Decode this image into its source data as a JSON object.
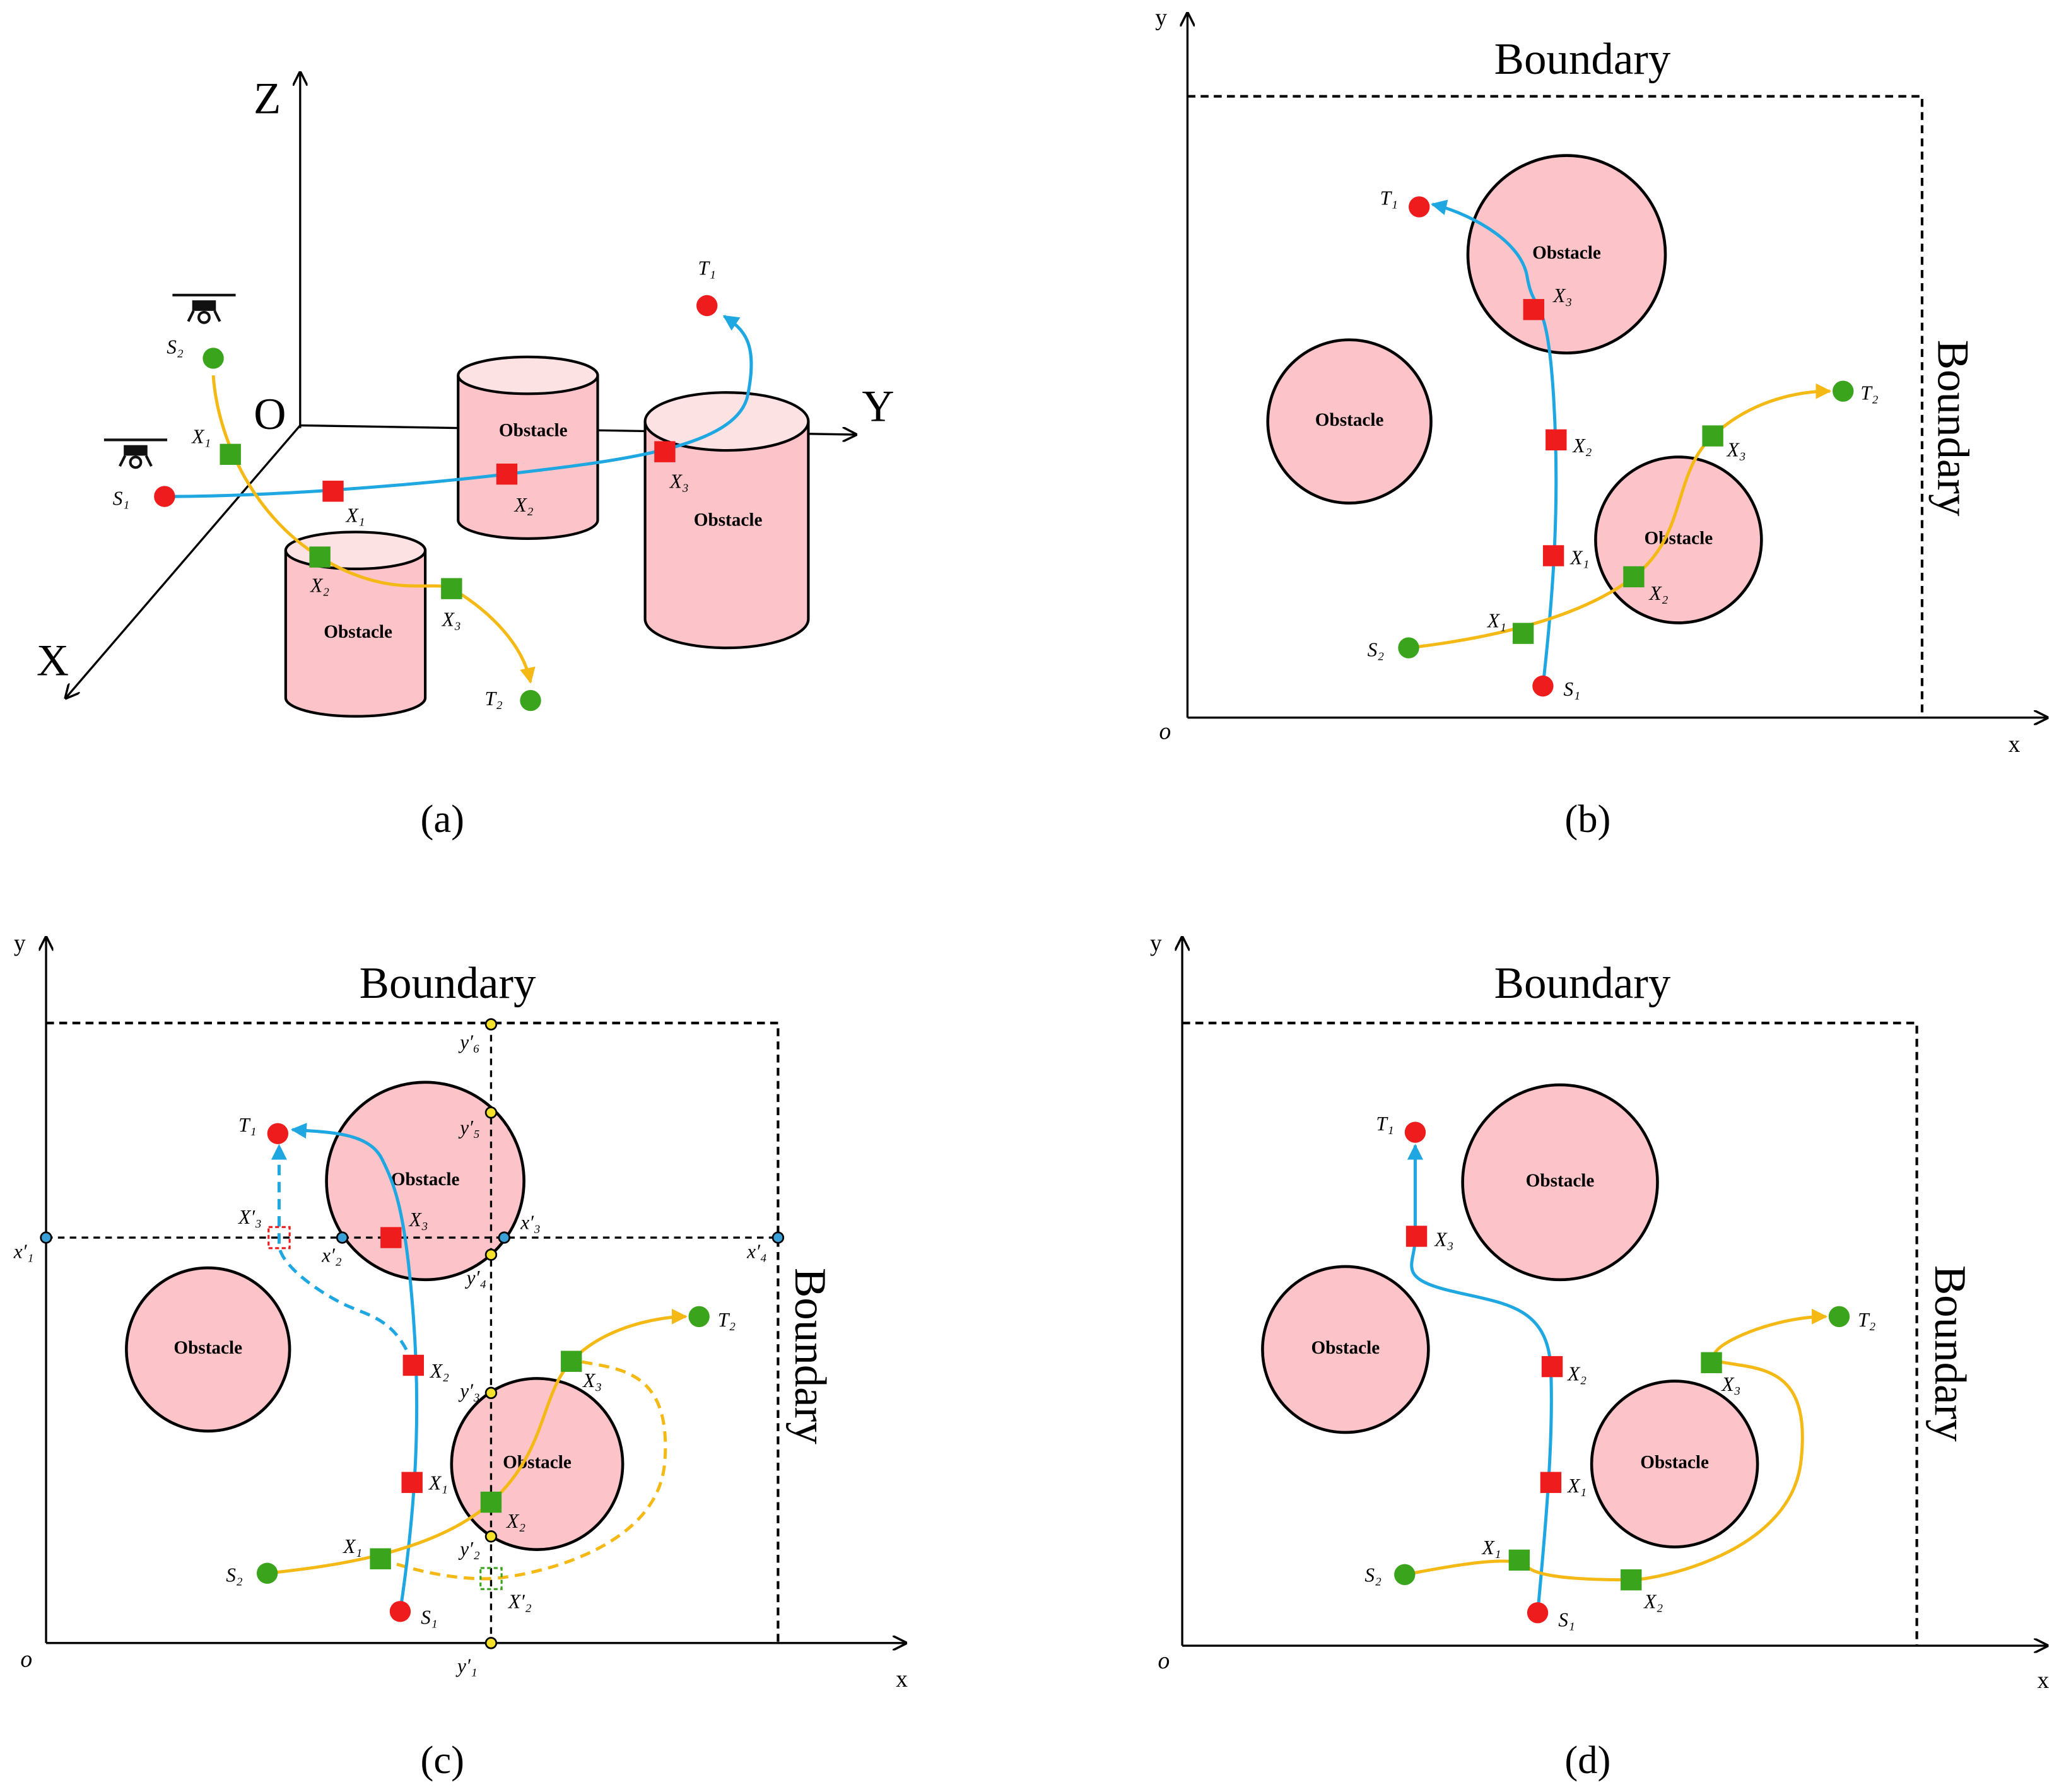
{
  "panels": [
    {
      "caption": "(a)",
      "axes": [
        "Z",
        "Y",
        "X",
        "O"
      ],
      "obstacles": [
        "Obstacle",
        "Obstacle",
        "Obstacle"
      ],
      "points": [
        "S₁",
        "S₂",
        "T₁",
        "T₂"
      ],
      "waypoints": [
        "X₁",
        "X₂",
        "X₃",
        "X₁",
        "X₂",
        "X₃"
      ]
    },
    {
      "caption": "(b)",
      "axes": [
        "y",
        "x",
        "o"
      ],
      "boundary": [
        "Boundary",
        "Boundary"
      ],
      "obstacles": [
        "Obstacle",
        "Obstacle",
        "Obstacle"
      ],
      "points": [
        "S₁",
        "S₂",
        "T₁",
        "T₂"
      ],
      "waypoints": [
        "X₁",
        "X₂",
        "X₃",
        "X₁",
        "X₂",
        "X₃"
      ]
    },
    {
      "caption": "(c)",
      "axes": [
        "y",
        "x",
        "o"
      ],
      "boundary": [
        "Boundary",
        "Boundary"
      ],
      "obstacles": [
        "Obstacle",
        "Obstacle",
        "Obstacle"
      ],
      "points": [
        "S₁",
        "S₂",
        "T₁",
        "T₂"
      ],
      "waypoints": [
        "X₁",
        "X₂",
        "X₃",
        "X₁",
        "X₂",
        "X₃"
      ],
      "grid_points": [
        "x′₁",
        "x′₂",
        "x′₃",
        "x′₄",
        "y′₁",
        "y′₂",
        "y′₃",
        "y′₄",
        "y′₅",
        "y′₆"
      ],
      "alt_waypoints": [
        "X′₃",
        "X′₂"
      ]
    },
    {
      "caption": "(d)",
      "axes": [
        "y",
        "x",
        "o"
      ],
      "boundary": [
        "Boundary",
        "Boundary"
      ],
      "obstacles": [
        "Obstacle",
        "Obstacle",
        "Obstacle"
      ],
      "points": [
        "S₁",
        "S₂",
        "T₁",
        "T₂"
      ],
      "waypoints": [
        "X₁",
        "X₂",
        "X₃",
        "X₁",
        "X₂",
        "X₃"
      ]
    }
  ]
}
